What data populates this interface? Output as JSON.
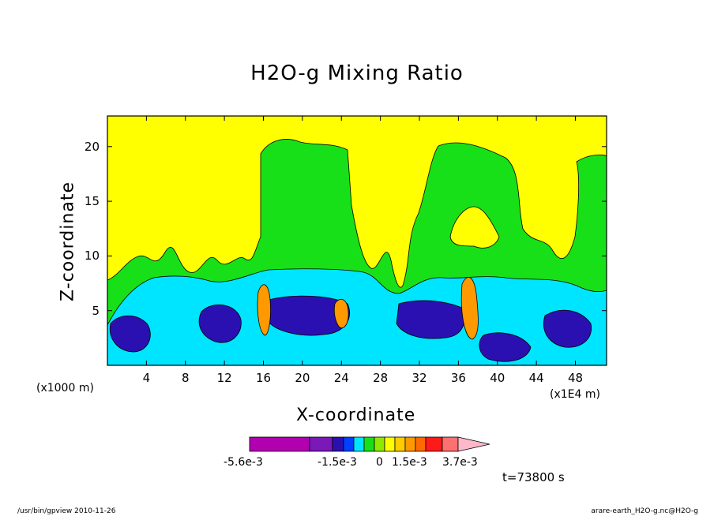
{
  "chart_data": {
    "type": "heatmap",
    "title": "H2O-g Mixing Ratio",
    "xlabel": "X-coordinate",
    "ylabel": "Z-coordinate",
    "x_unit_left": "(x1000 m)",
    "x_unit_right": "(x1E4 m)",
    "x_ticks": [
      "4",
      "8",
      "12",
      "16",
      "20",
      "24",
      "28",
      "32",
      "36",
      "40",
      "44",
      "48"
    ],
    "x_tick_values": [
      4,
      8,
      12,
      16,
      20,
      24,
      28,
      32,
      36,
      40,
      44,
      48
    ],
    "xlim": [
      0,
      51.2
    ],
    "y_ticks": [
      "5",
      "10",
      "15",
      "20"
    ],
    "y_tick_values": [
      5,
      10,
      15,
      20
    ],
    "ylim": [
      0,
      22.8
    ],
    "colorbar": {
      "labels": [
        "-5.6e-3",
        "-1.5e-3",
        "0",
        "1.5e-3",
        "3.7e-3"
      ],
      "colors": [
        "#b000b0",
        "#7a18b8",
        "#2a10b0",
        "#0040ff",
        "#00e5ff",
        "#18e018",
        "#90e800",
        "#ffff00",
        "#ffcc00",
        "#ff9900",
        "#ff6a00",
        "#ff1a1a",
        "#ff7070",
        "#ffb8c8"
      ]
    },
    "time_label": "t=73800 s",
    "regions": {
      "background": "#ffff00",
      "green": "#18e018",
      "cyan": "#00e5ff",
      "blue": "#2a10b0",
      "bright_blue": "#0040ff",
      "orange": "#ff9900"
    }
  },
  "footer": {
    "left": "/usr/bin/gpview   2010-11-26",
    "right": "arare-earth_H2O-g.nc@H2O-g"
  }
}
